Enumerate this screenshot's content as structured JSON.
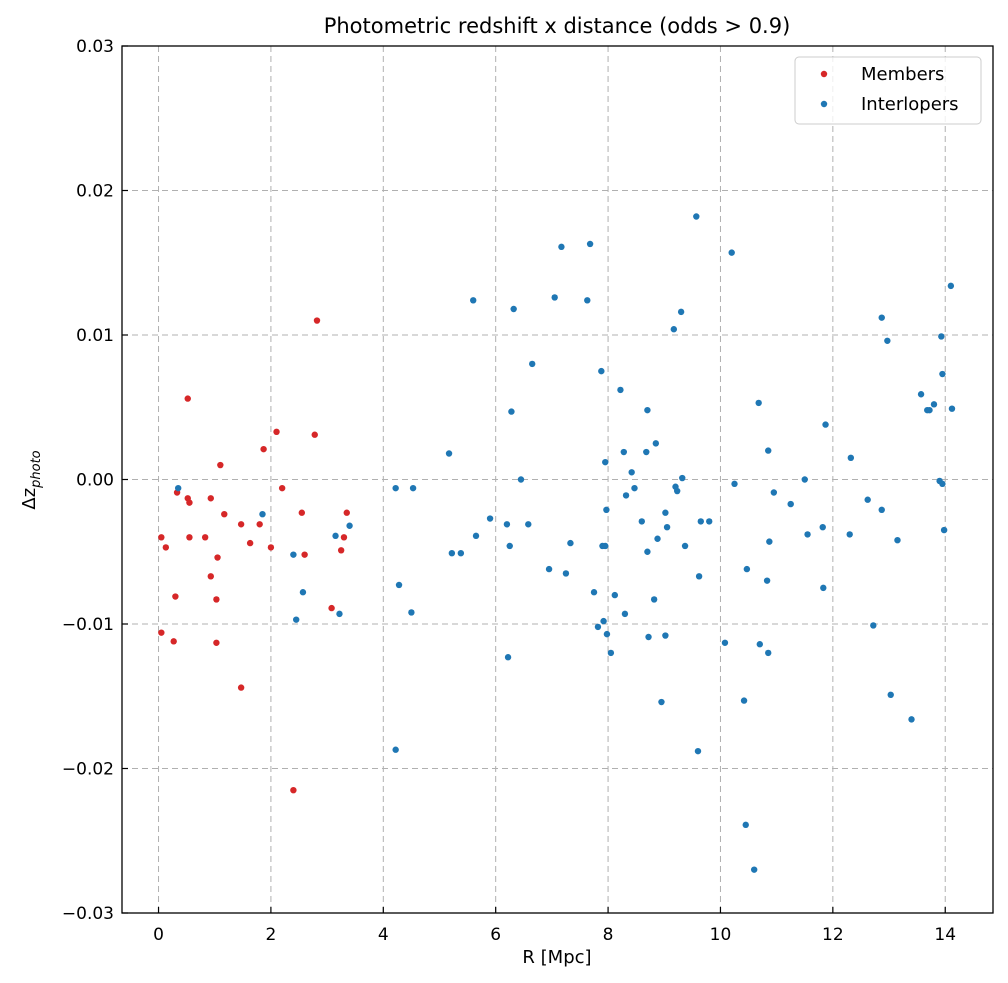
{
  "chart_data": {
    "type": "scatter",
    "title": "Photometric redshift x distance (odds > 0.9)",
    "xlabel": "R [Mpc]",
    "ylabel_main": "Δz",
    "ylabel_sub": "photo",
    "xlim": [
      -0.65,
      14.85
    ],
    "ylim": [
      -0.03,
      0.03
    ],
    "xticks": [
      0,
      2,
      4,
      6,
      8,
      10,
      12,
      14
    ],
    "yticks": [
      -0.03,
      -0.02,
      -0.01,
      0.0,
      0.01,
      0.02,
      0.03
    ],
    "ytick_labels": [
      "−0.03",
      "−0.02",
      "−0.01",
      "0.00",
      "0.01",
      "0.02",
      "0.03"
    ],
    "grid": true,
    "legend_position": "top-right",
    "series": [
      {
        "name": "Members",
        "color": "#d62728",
        "points": [
          [
            0.05,
            -0.004
          ],
          [
            0.05,
            -0.0106
          ],
          [
            0.13,
            -0.0047
          ],
          [
            0.27,
            -0.0112
          ],
          [
            0.3,
            -0.0081
          ],
          [
            0.33,
            -0.0009
          ],
          [
            0.52,
            -0.0013
          ],
          [
            0.52,
            0.0056
          ],
          [
            0.55,
            -0.0016
          ],
          [
            0.55,
            -0.004
          ],
          [
            0.83,
            -0.004
          ],
          [
            0.93,
            -0.0013
          ],
          [
            0.93,
            -0.0067
          ],
          [
            1.03,
            -0.0083
          ],
          [
            1.03,
            -0.0113
          ],
          [
            1.05,
            -0.0054
          ],
          [
            1.1,
            0.001
          ],
          [
            1.17,
            -0.0024
          ],
          [
            1.47,
            -0.0031
          ],
          [
            1.47,
            -0.0144
          ],
          [
            1.63,
            -0.0044
          ],
          [
            1.8,
            -0.0031
          ],
          [
            1.87,
            0.0021
          ],
          [
            2.0,
            -0.0047
          ],
          [
            2.1,
            0.0033
          ],
          [
            2.2,
            -0.0006
          ],
          [
            2.4,
            -0.0215
          ],
          [
            2.55,
            -0.0023
          ],
          [
            2.6,
            -0.0052
          ],
          [
            2.78,
            0.0031
          ],
          [
            2.82,
            0.011
          ],
          [
            3.08,
            -0.0089
          ],
          [
            3.25,
            -0.0049
          ],
          [
            3.3,
            -0.004
          ],
          [
            3.35,
            -0.0023
          ]
        ]
      },
      {
        "name": "Interlopers",
        "color": "#1f77b4",
        "points": [
          [
            0.35,
            -0.0006
          ],
          [
            1.85,
            -0.0024
          ],
          [
            2.4,
            -0.0052
          ],
          [
            2.45,
            -0.0097
          ],
          [
            2.57,
            -0.0078
          ],
          [
            3.15,
            -0.0039
          ],
          [
            3.22,
            -0.0093
          ],
          [
            3.4,
            -0.0032
          ],
          [
            4.22,
            -0.0006
          ],
          [
            4.22,
            -0.0187
          ],
          [
            4.28,
            -0.0073
          ],
          [
            4.5,
            -0.0092
          ],
          [
            4.53,
            -0.0006
          ],
          [
            5.17,
            0.0018
          ],
          [
            5.22,
            -0.0051
          ],
          [
            5.38,
            -0.0051
          ],
          [
            5.6,
            0.0124
          ],
          [
            5.65,
            -0.0039
          ],
          [
            5.9,
            -0.0027
          ],
          [
            6.2,
            -0.0031
          ],
          [
            6.22,
            -0.0123
          ],
          [
            6.25,
            -0.0046
          ],
          [
            6.28,
            0.0047
          ],
          [
            6.32,
            0.0118
          ],
          [
            6.45,
            0.0
          ],
          [
            6.58,
            -0.0031
          ],
          [
            6.65,
            0.008
          ],
          [
            6.95,
            -0.0062
          ],
          [
            7.05,
            0.0126
          ],
          [
            7.17,
            0.0161
          ],
          [
            7.25,
            -0.0065
          ],
          [
            7.33,
            -0.0044
          ],
          [
            7.63,
            0.0124
          ],
          [
            7.68,
            0.0163
          ],
          [
            7.75,
            -0.0078
          ],
          [
            7.82,
            -0.0102
          ],
          [
            7.88,
            0.0075
          ],
          [
            7.9,
            -0.0046
          ],
          [
            7.92,
            -0.0098
          ],
          [
            7.95,
            -0.0046
          ],
          [
            7.95,
            0.0012
          ],
          [
            7.97,
            -0.0021
          ],
          [
            7.98,
            -0.0107
          ],
          [
            8.05,
            -0.012
          ],
          [
            8.12,
            -0.008
          ],
          [
            8.22,
            0.0062
          ],
          [
            8.28,
            0.0019
          ],
          [
            8.3,
            -0.0093
          ],
          [
            8.32,
            -0.0011
          ],
          [
            8.42,
            0.0005
          ],
          [
            8.47,
            -0.0006
          ],
          [
            8.6,
            -0.0029
          ],
          [
            8.68,
            0.0019
          ],
          [
            8.7,
            0.0048
          ],
          [
            8.7,
            -0.005
          ],
          [
            8.72,
            -0.0109
          ],
          [
            8.82,
            -0.0083
          ],
          [
            8.85,
            0.0025
          ],
          [
            8.88,
            -0.0041
          ],
          [
            8.95,
            -0.0154
          ],
          [
            9.02,
            -0.0023
          ],
          [
            9.02,
            -0.0108
          ],
          [
            9.05,
            -0.0033
          ],
          [
            9.17,
            0.0104
          ],
          [
            9.2,
            -0.0005
          ],
          [
            9.23,
            -0.0008
          ],
          [
            9.3,
            0.0116
          ],
          [
            9.32,
            0.0001
          ],
          [
            9.37,
            -0.0046
          ],
          [
            9.57,
            0.0182
          ],
          [
            9.6,
            -0.0188
          ],
          [
            9.62,
            -0.0067
          ],
          [
            9.65,
            -0.0029
          ],
          [
            9.8,
            -0.0029
          ],
          [
            10.08,
            -0.0113
          ],
          [
            10.2,
            0.0157
          ],
          [
            10.25,
            -0.0003
          ],
          [
            10.42,
            -0.0153
          ],
          [
            10.45,
            -0.0239
          ],
          [
            10.47,
            -0.0062
          ],
          [
            10.6,
            -0.027
          ],
          [
            10.68,
            0.0053
          ],
          [
            10.7,
            -0.0114
          ],
          [
            10.83,
            -0.007
          ],
          [
            10.85,
            0.002
          ],
          [
            10.85,
            -0.012
          ],
          [
            10.87,
            -0.0043
          ],
          [
            10.95,
            -0.0009
          ],
          [
            11.25,
            -0.0017
          ],
          [
            11.5,
            0.0
          ],
          [
            11.55,
            -0.0038
          ],
          [
            11.82,
            -0.0033
          ],
          [
            11.83,
            -0.0075
          ],
          [
            11.87,
            0.0038
          ],
          [
            12.3,
            -0.0038
          ],
          [
            12.32,
            0.0015
          ],
          [
            12.62,
            -0.0014
          ],
          [
            12.72,
            -0.0101
          ],
          [
            12.87,
            0.0112
          ],
          [
            12.87,
            -0.0021
          ],
          [
            12.97,
            0.0096
          ],
          [
            13.03,
            -0.0149
          ],
          [
            13.15,
            -0.0042
          ],
          [
            13.4,
            -0.0166
          ],
          [
            13.57,
            0.0059
          ],
          [
            13.68,
            0.0048
          ],
          [
            13.72,
            0.0048
          ],
          [
            13.8,
            0.0052
          ],
          [
            13.9,
            -0.0001
          ],
          [
            13.93,
            0.0099
          ],
          [
            13.95,
            0.0073
          ],
          [
            13.95,
            -0.0003
          ],
          [
            13.98,
            -0.0035
          ],
          [
            14.1,
            0.0134
          ],
          [
            14.12,
            0.0049
          ]
        ]
      }
    ]
  }
}
